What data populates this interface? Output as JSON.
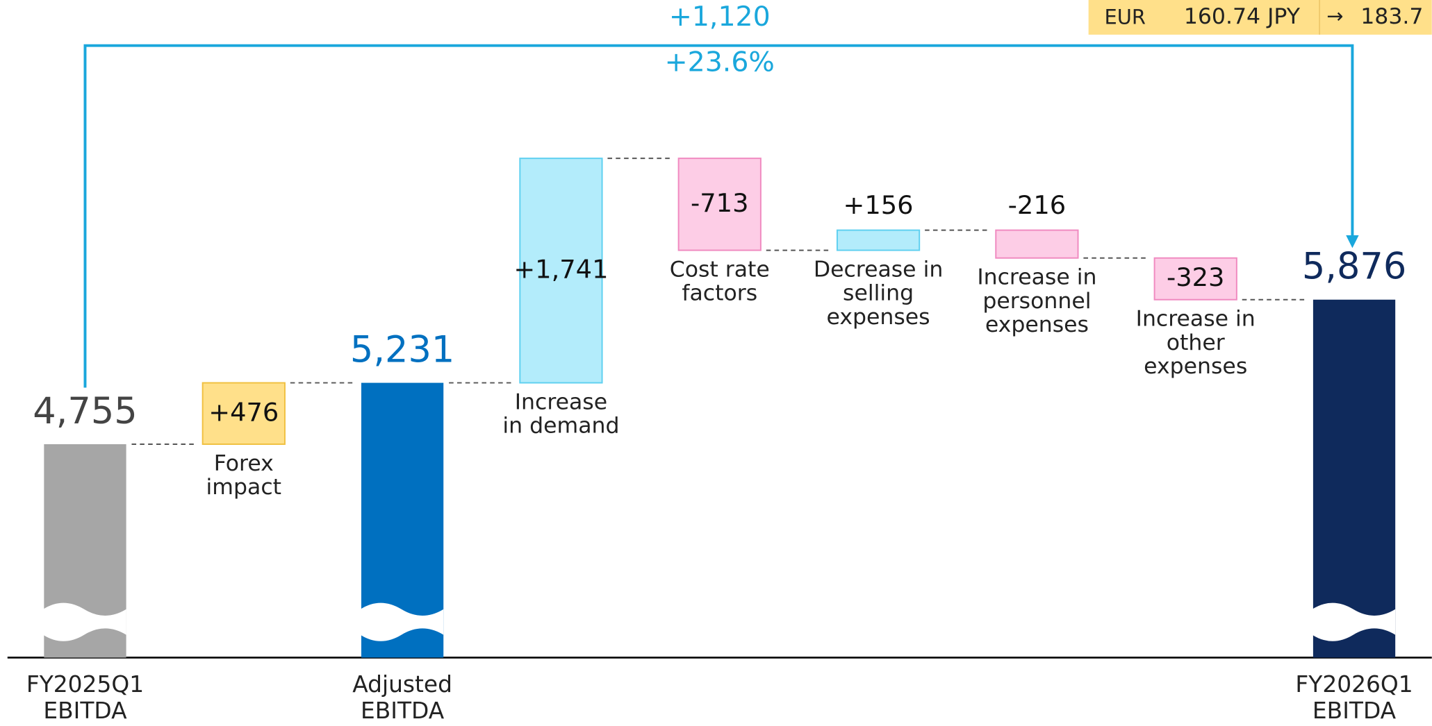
{
  "chart_data": {
    "type": "waterfall",
    "categories": [
      "FY2025Q1\nEBITDA",
      "Forex\nimpact",
      "Adjusted\nEBITDA",
      "Increase\nin demand",
      "Cost rate\nfactors",
      "Decrease in\nselling\nexpenses",
      "Increase in\npersonnel\nexpenses",
      "Increase in\nother\nexpenses",
      "FY2026Q1\nEBITDA"
    ],
    "values": [
      4755,
      476,
      5231,
      1741,
      -713,
      156,
      -216,
      -323,
      5876
    ],
    "value_labels": [
      "4,755",
      "+476",
      "5,231",
      "+1,741",
      "-713",
      "+156",
      "-216",
      "-323",
      "5,876"
    ],
    "is_total": [
      true,
      false,
      true,
      false,
      false,
      false,
      false,
      false,
      true
    ],
    "colors": [
      "#a6a6a6",
      "#ffe08a",
      "#0070c0",
      "#b3ecfb",
      "#fdcde6",
      "#b3ecfb",
      "#fdcde6",
      "#fdcde6",
      "#0f2a5c"
    ],
    "ylim": [
      3100,
      8200
    ],
    "annotations": [
      "+1,120",
      "+23.6%"
    ],
    "exchange_rate": {
      "currency": "EUR",
      "from": "160.74 JPY",
      "arrow": "→",
      "to": "183.7"
    }
  }
}
